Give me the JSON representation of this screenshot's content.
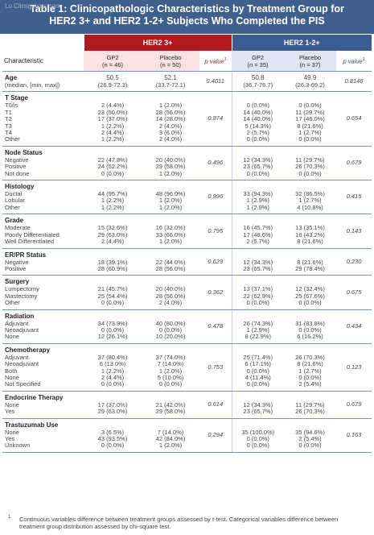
{
  "title": {
    "line1": "Table 1: Clinicopathologic Characteristics by Treatment Group for",
    "line2": "HER2 3+ and HER2 1-2+ Subjects Who Completed the PIS",
    "watermark": "Lo Clinsguicos com"
  },
  "groups": {
    "her2_3": "HER2 3+",
    "her2_12": "HER2 1-2+"
  },
  "header": {
    "characteristic": "Characteristic",
    "her3_gp2": "GP2",
    "her3_gp2_n": "(n = 46)",
    "her3_placebo": "Placebo",
    "her3_placebo_n": "(n = 50)",
    "her12_gp2": "GP2",
    "her12_gp2_n": "(n = 35)",
    "her12_placebo": "Placebo",
    "her12_placebo_n": "(n = 37)",
    "pvalue": "p value",
    "pvalue_sup": "1"
  },
  "sections": [
    {
      "title": "Age",
      "sub": [
        "(median, [min, max])"
      ],
      "her3_gp2": {
        "head": "50.5",
        "rows": [
          "(26.9-72.3)"
        ]
      },
      "her3_placebo": {
        "head": "52.1",
        "rows": [
          "(33.7-72.1)"
        ]
      },
      "her3_p": "0.4011",
      "her12_gp2": {
        "head": "50.8",
        "rows": [
          "(36.7-76.7)"
        ]
      },
      "her12_placebo": {
        "head": "49.9",
        "rows": [
          "(26.3-69.2)"
        ]
      },
      "her12_p": "0.8146"
    },
    {
      "title": "T Stage",
      "sub": [
        "T0/is",
        "T1",
        "T2",
        "T3",
        "T4",
        "Other"
      ],
      "her3_gp2": {
        "rows": [
          "2 (4.4%)",
          "23 (50.0%)",
          "17 (37.0%)",
          "1 (2.2%)",
          "2 (4.4%)",
          "1 (2.2%)"
        ]
      },
      "her3_placebo": {
        "rows": [
          "1 (2.0%)",
          "28 (56.0%)",
          "14 (28.0%)",
          "2 (4.0%)",
          "3 (6.0%)",
          "2 (4.0%)"
        ]
      },
      "her3_p": "0.874",
      "her12_gp2": {
        "rows": [
          "0 (0.0%)",
          "14 (40.0%)",
          "14 (40.0%)",
          "5 (14.3%)",
          "2 (5.7%)",
          "0 (0.0%)"
        ]
      },
      "her12_placebo": {
        "rows": [
          "0 (0.0%)",
          "11 (29.7%)",
          "17 (46.0%)",
          "8 (21.6%)",
          "1 (2.7%)",
          "0 (0.0%)"
        ]
      },
      "her12_p": "0.654"
    },
    {
      "title": "Node Status",
      "sub": [
        "Negative",
        "Positive",
        "Not done"
      ],
      "her3_gp2": {
        "rows": [
          "22 (47.8%)",
          "24 (52.2%)",
          "0 (0.0%)"
        ]
      },
      "her3_placebo": {
        "rows": [
          "20 (40.0%)",
          "29 (58.0%)",
          "1 (2.0%)"
        ]
      },
      "her3_p": "0.496",
      "her12_gp2": {
        "rows": [
          "12 (34.3%)",
          "23 (65.7%)",
          "0 (0.0%)"
        ]
      },
      "her12_placebo": {
        "rows": [
          "11 (29.7%)",
          "26 (70.3%)",
          "0 (0.0%)"
        ]
      },
      "her12_p": "0.679"
    },
    {
      "title": "Histology",
      "sub": [
        "Ductal",
        "Lobular",
        "Other"
      ],
      "her3_gp2": {
        "rows": [
          "44 (95.7%)",
          "1 (2.2%)",
          "1 (2.2%)"
        ]
      },
      "her3_placebo": {
        "rows": [
          "48 (96.0%)",
          "1 (2.0%)",
          "1 (2.0%)"
        ]
      },
      "her3_p": "0.996",
      "her12_gp2": {
        "rows": [
          "33 (94.3%)",
          "1 (2.9%)",
          "1 (2.9%)"
        ]
      },
      "her12_placebo": {
        "rows": [
          "32 (86.5%)",
          "1 (2.7%)",
          "4 (10.8%)"
        ]
      },
      "her12_p": "0.415"
    },
    {
      "title": "Grade",
      "sub": [
        "Moderate",
        "Poorly Differentiated",
        "Well Differentiated"
      ],
      "her3_gp2": {
        "rows": [
          "15 (32.6%)",
          "29 (63.0%)",
          "2 (4.4%)"
        ]
      },
      "her3_placebo": {
        "rows": [
          "16 (32.0%)",
          "33 (66.0%)",
          "1 (2.0%)"
        ]
      },
      "her3_p": "0.795",
      "her12_gp2": {
        "rows": [
          "16 (45.7%)",
          "17 (48.6%)",
          "2 (5.7%)"
        ]
      },
      "her12_placebo": {
        "rows": [
          "13 (35.1%)",
          "16 (43.2%)",
          "8 (21.6%)"
        ]
      },
      "her12_p": "0.143"
    },
    {
      "title": "ER/PR Status",
      "sub": [
        "Negative",
        "Positive"
      ],
      "her3_gp2": {
        "rows": [
          "18 (39.1%)",
          "28 (60.9%)"
        ]
      },
      "her3_placebo": {
        "rows": [
          "22 (44.0%)",
          "28 (56.0%)"
        ]
      },
      "her3_p": "0.629",
      "her12_gp2": {
        "rows": [
          "12 (34.3%)",
          "23 (65.7%)"
        ]
      },
      "her12_placebo": {
        "rows": [
          "8 (21.6%)",
          "29 (78.4%)"
        ]
      },
      "her12_p": "0.230"
    },
    {
      "title": "Surgery",
      "sub": [
        "Lumpectomy",
        "Mastectomy",
        "Other"
      ],
      "her3_gp2": {
        "rows": [
          "21 (45.7%)",
          "25 (54.4%)",
          "0 (0.0%)"
        ]
      },
      "her3_placebo": {
        "rows": [
          "20 (40.0%)",
          "28 (56.0%)",
          "2 (4.0%)"
        ]
      },
      "her3_p": "0.362",
      "her12_gp2": {
        "rows": [
          "13 (37.1%)",
          "22 (62.9%)",
          "0 (0.0%)"
        ]
      },
      "her12_placebo": {
        "rows": [
          "12 (32.4%)",
          "25 (67.6%)",
          "0 (0.0%)"
        ]
      },
      "her12_p": "0.675"
    },
    {
      "title": "Radiation",
      "sub": [
        "Adjuvant",
        "Neoadjuvant",
        "None"
      ],
      "her3_gp2": {
        "rows": [
          "34 (73.9%)",
          "0 (0.0%)",
          "12 (26.1%)"
        ]
      },
      "her3_placebo": {
        "rows": [
          "40 (80.0%)",
          "0 (0.0%)",
          "10 (20.0%)"
        ]
      },
      "her3_p": "0.478",
      "her12_gp2": {
        "rows": [
          "26 (74.3%)",
          "1 (2.9%)",
          "8 (22.9%)"
        ]
      },
      "her12_placebo": {
        "rows": [
          "31 (83.8%)",
          "0 (0.0%)",
          "6 (16.2%)"
        ]
      },
      "her12_p": "0.434"
    },
    {
      "title": "Chemotherapy",
      "sub": [
        "Adjuvant",
        "Neoadjuvant",
        "Both",
        "None",
        "Not Specified"
      ],
      "her3_gp2": {
        "rows": [
          "37 (80.4%)",
          "6 (13.0%)",
          "1 (2.2%)",
          "2 (4.4%)",
          "0 (0.0%)"
        ]
      },
      "her3_placebo": {
        "rows": [
          "37 (74.0%)",
          "7 (14.0%)",
          "1 (2.0%)",
          "5 (10.0%)",
          "0 (0.0%)"
        ]
      },
      "her3_p": "0.753",
      "her12_gp2": {
        "rows": [
          "25 (71.4%)",
          "6 (17.1%)",
          "0 (0.0%)",
          "4 (11.4%)",
          "0 (0.0%)"
        ]
      },
      "her12_placebo": {
        "rows": [
          "26 (70.3%)",
          "8 (21.6%)",
          "1 (2.7%)",
          "0 (0.0%)",
          "2 (5.4%)"
        ]
      },
      "her12_p": "0.123"
    },
    {
      "title": "Endocrine Therapy",
      "sub": [
        "None",
        "Yes"
      ],
      "her3_gp2": {
        "rows": [
          "17 (37.0%)",
          "29 (63.0%)"
        ]
      },
      "her3_placebo": {
        "rows": [
          "21 (42.0%)",
          "29 (58.0%)"
        ]
      },
      "her3_p": "0.614",
      "her12_gp2": {
        "rows": [
          "12 (34.3%)",
          "23 (65.7%)"
        ]
      },
      "her12_placebo": {
        "rows": [
          "11 (29.7%)",
          "26 (70.3%)"
        ]
      },
      "her12_p": "0.679"
    },
    {
      "title": "Trastuzumab Use",
      "sub": [
        "None",
        "Yes",
        "Unknown"
      ],
      "her3_gp2": {
        "rows": [
          "3 (6.5%)",
          "43 (93.5%)",
          "0 (0.0%)"
        ]
      },
      "her3_placebo": {
        "rows": [
          "7 (14.0%)",
          "42 (84.0%)",
          "1 (2.0%)"
        ]
      },
      "her3_p": "0.294",
      "her12_gp2": {
        "rows": [
          "35 (100.0%)",
          "0 (0.0%)",
          "0 (0.0%)"
        ]
      },
      "her12_placebo": {
        "rows": [
          "35 (94.6%)",
          "2 (5.4%)",
          "0 (0.0%)"
        ]
      },
      "her12_p": "0.163"
    }
  ],
  "footnote": {
    "marker": "1",
    "text": "Continuous variables difference between treatment groups assessed by t-test. Categorical variables difference between treatment group distribution assessed by chi-square test."
  }
}
